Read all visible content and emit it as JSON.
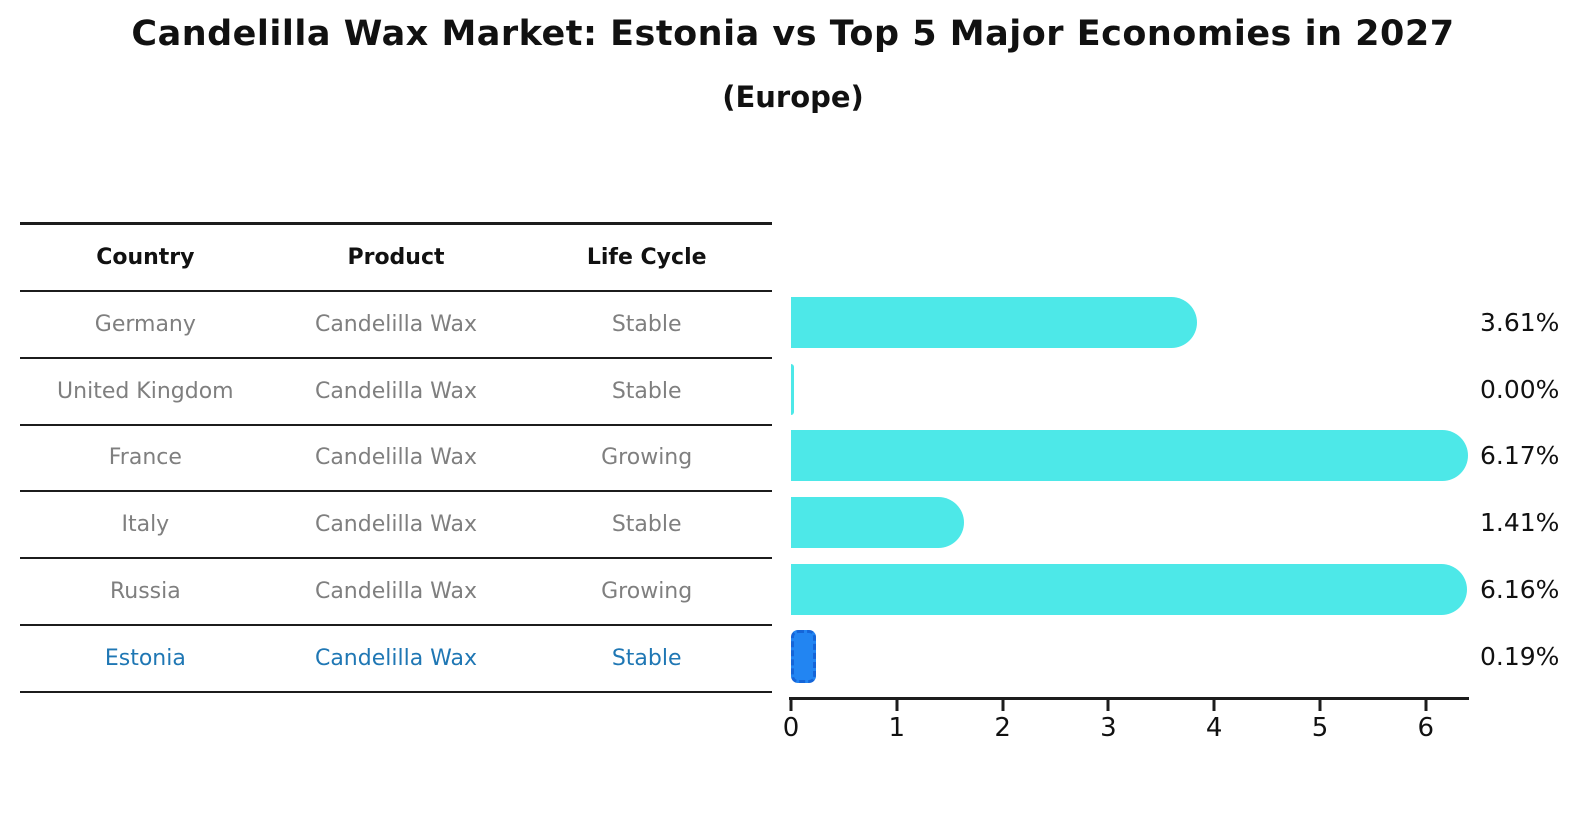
{
  "title": "Candelilla Wax Market: Estonia vs Top 5 Major Economies in 2027",
  "subtitle": "(Europe)",
  "table": {
    "headers": [
      "Country",
      "Product",
      "Life Cycle"
    ],
    "rows": [
      {
        "country": "Germany",
        "product": "Candelilla Wax",
        "life_cycle": "Stable",
        "highlighted": false
      },
      {
        "country": "United Kingdom",
        "product": "Candelilla Wax",
        "life_cycle": "Stable",
        "highlighted": false
      },
      {
        "country": "France",
        "product": "Candelilla Wax",
        "life_cycle": "Growing",
        "highlighted": false
      },
      {
        "country": "Italy",
        "product": "Candelilla Wax",
        "life_cycle": "Stable",
        "highlighted": false
      },
      {
        "country": "Russia",
        "product": "Candelilla Wax",
        "life_cycle": "Growing",
        "highlighted": false
      },
      {
        "country": "Estonia",
        "product": "Candelilla Wax",
        "life_cycle": "Stable",
        "highlighted": true
      }
    ]
  },
  "chart_data": {
    "type": "bar",
    "orientation": "horizontal",
    "title": "Candelilla Wax Market: Estonia vs Top 5 Major Economies in 2027 (Europe)",
    "categories": [
      "Germany",
      "United Kingdom",
      "France",
      "Italy",
      "Russia",
      "Estonia"
    ],
    "values": [
      3.61,
      0.0,
      6.17,
      1.41,
      6.16,
      0.19
    ],
    "labels": [
      "3.61%",
      "0.00%",
      "6.17%",
      "1.41%",
      "6.16%",
      "0.19%"
    ],
    "xlabel": "",
    "ylabel": "",
    "xlim": [
      0,
      6.4
    ],
    "x_ticks": [
      0,
      1,
      2,
      3,
      4,
      5,
      6
    ],
    "grid": false,
    "legend": "none",
    "highlight_index": 5
  },
  "colors": {
    "bar_color": "#4de8e8",
    "highlight_bar_color": "#2285f2",
    "highlight_bar_border": "#1565d8",
    "highlight_text_color": "#1f77b4",
    "table_text_color": "#7f7f7f",
    "heading_text_color": "#111111",
    "line_color": "#1c1c1c",
    "background": "#ffffff"
  }
}
